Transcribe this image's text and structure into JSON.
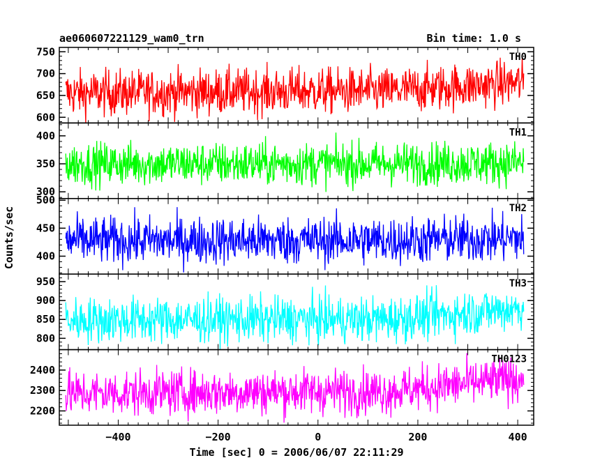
{
  "chart_data": {
    "type": "line",
    "title": "ae060607221129_wam0_trn",
    "subtitle": "Bin time: 1.0 s",
    "xlabel": "Time [sec] 0 = 2006/06/07 22:11:29",
    "ylabel": "Counts/sec",
    "xlim": [
      -518,
      432
    ],
    "xticks": [
      -400,
      -200,
      0,
      200,
      400
    ],
    "xtick_labels": [
      "−400",
      "−200",
      "0",
      "200",
      "400"
    ],
    "x_start": -505,
    "x_end": 412,
    "bin_seconds": 1.0,
    "panels": [
      {
        "name": "TH0",
        "color": "#ff0000",
        "ylim": [
          587,
          760
        ],
        "yticks": [
          600,
          650,
          700,
          750
        ],
        "ytick_labels": [
          "600",
          "650",
          "700",
          "750"
        ],
        "mean_start": 655,
        "mean_end": 680,
        "mean_mid": 660,
        "noise": 26
      },
      {
        "name": "TH1",
        "color": "#00ff00",
        "ylim": [
          288,
          423
        ],
        "yticks": [
          300,
          350,
          400
        ],
        "ytick_labels": [
          "300",
          "350",
          "400"
        ],
        "mean_start": 350,
        "mean_end": 352,
        "mean_mid": 350,
        "noise": 19
      },
      {
        "name": "TH2",
        "color": "#0000ff",
        "ylim": [
          368,
          503
        ],
        "yticks": [
          400,
          450,
          500
        ],
        "ytick_labels": [
          "400",
          "450",
          "500"
        ],
        "mean_start": 428,
        "mean_end": 432,
        "mean_mid": 428,
        "noise": 21
      },
      {
        "name": "TH3",
        "color": "#00ffff",
        "ylim": [
          770,
          970
        ],
        "yticks": [
          800,
          850,
          900,
          950
        ],
        "ytick_labels": [
          "800",
          "850",
          "900",
          "950"
        ],
        "mean_start": 848,
        "mean_end": 880,
        "mean_mid": 850,
        "noise": 30
      },
      {
        "name": "TH0123",
        "color": "#ff00ff",
        "ylim": [
          2130,
          2500
        ],
        "yticks": [
          2200,
          2300,
          2400
        ],
        "ytick_labels": [
          "2200",
          "2300",
          "2400"
        ],
        "mean_start": 2285,
        "mean_end": 2360,
        "mean_mid": 2295,
        "noise": 55
      }
    ]
  }
}
